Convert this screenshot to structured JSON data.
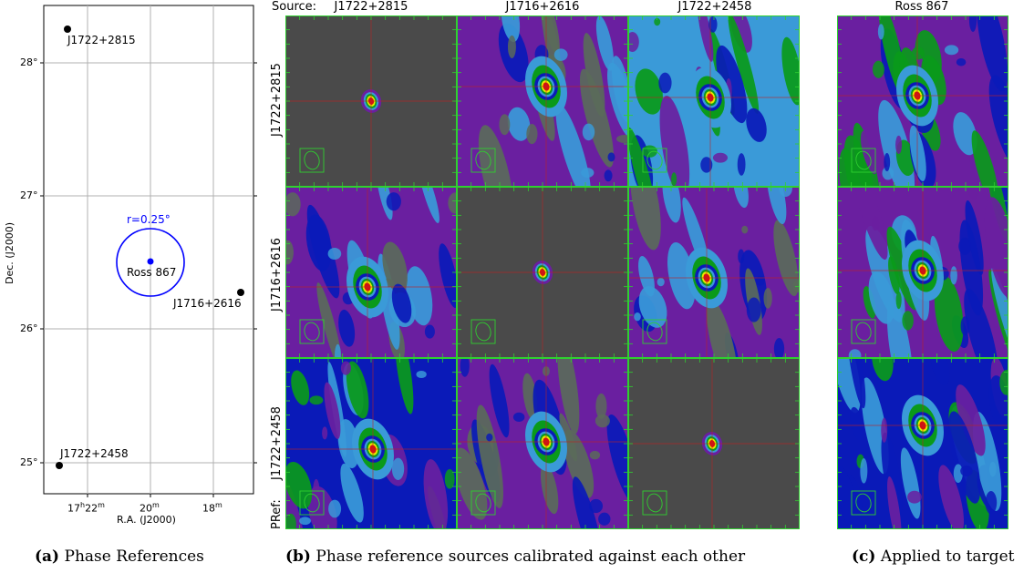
{
  "panel_a": {
    "sources": [
      {
        "name": "J1722+2815",
        "ra": "17h22.5m",
        "dec": 28.25,
        "kind": "reference"
      },
      {
        "name": "J1716+2616",
        "ra": "17h16.5m",
        "dec": 26.27,
        "kind": "reference"
      },
      {
        "name": "J1722+2458",
        "ra": "17h22.8m",
        "dec": 24.97,
        "kind": "reference"
      },
      {
        "name": "Ross 867",
        "ra": "17h19.9m",
        "dec": 26.5,
        "kind": "target"
      }
    ],
    "circle_label": "r=0.25°",
    "y_axis_label": "Dec. (J2000)",
    "x_axis_label": "R.A. (J2000)",
    "y_ticks": [
      "25°",
      "26°",
      "27°",
      "28°"
    ],
    "x_ticks": {
      "t1_main": "17",
      "t1_h": "h",
      "t1_m": "22",
      "t1_msup": "m",
      "t2_main": "20",
      "t2_sup": "m",
      "t3_main": "18",
      "t3_sup": "m"
    },
    "colors": {
      "target": "#0000ff",
      "reference": "#000000"
    }
  },
  "panel_b": {
    "source_prefix": "Source:",
    "columns": [
      "J1722+2815",
      "J1716+2616",
      "J1722+2458"
    ],
    "rows": [
      "J1722+2815",
      "J1716+2616",
      "J1722+2458"
    ],
    "pref_label": "PRef:"
  },
  "panel_c": {
    "column": "Ross 867"
  },
  "captions": {
    "a_tag": "(a)",
    "a_text": "Phase References",
    "b_tag": "(b)",
    "b_text": "Phase reference sources calibrated against each other",
    "c_tag": "(c)",
    "c_text": "Applied to target"
  },
  "palette": {
    "background_gray": "#4a4a4a",
    "purple": "#6a1fa0",
    "gray_green": "#5a6a5a",
    "blue": "#0a1ab8",
    "light_blue": "#3a9ad8",
    "green": "#0a9a1a",
    "yellow": "#e8e800",
    "red": "#d41010",
    "grid_green": "#2fd02f"
  }
}
